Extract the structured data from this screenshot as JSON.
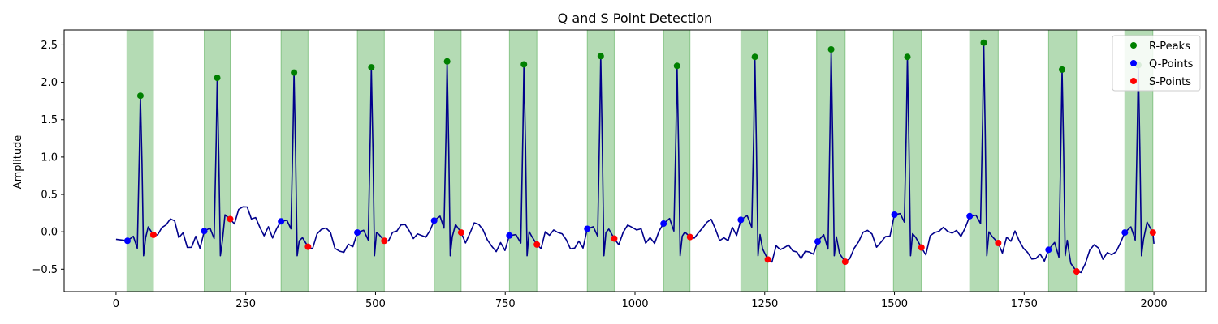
{
  "chart_data": {
    "type": "line",
    "title": "Q and S Point Detection",
    "xlabel": "",
    "ylabel": "Amplitude",
    "xlim": [
      -100,
      2100
    ],
    "ylim": [
      -0.8,
      2.7
    ],
    "xticks": [
      0,
      250,
      500,
      750,
      1000,
      1250,
      1500,
      1750,
      2000
    ],
    "yticks": [
      -0.5,
      0.0,
      0.5,
      1.0,
      1.5,
      2.0,
      2.5
    ],
    "xtick_labels": [
      "0",
      "250",
      "500",
      "750",
      "1000",
      "1250",
      "1500",
      "1750",
      "2000"
    ],
    "ytick_labels": [
      "−0.5",
      "0.0",
      "0.5",
      "1.0",
      "1.5",
      "2.0",
      "2.5"
    ],
    "grid": false,
    "legend_position": "top-right",
    "colors": {
      "signal": "#00008b",
      "r_peaks": "#008000",
      "q_points": "#0000ff",
      "s_points": "#ff0000",
      "qrs_span": "#2e9a2e"
    },
    "qrs_intervals": [
      [
        21,
        72
      ],
      [
        170,
        220
      ],
      [
        318,
        370
      ],
      [
        465,
        517
      ],
      [
        613,
        665
      ],
      [
        758,
        811
      ],
      [
        908,
        960
      ],
      [
        1055,
        1106
      ],
      [
        1204,
        1256
      ],
      [
        1350,
        1405
      ],
      [
        1498,
        1552
      ],
      [
        1645,
        1700
      ],
      [
        1797,
        1851
      ],
      [
        1944,
        1998
      ]
    ],
    "r_peaks": {
      "x": [
        47,
        195,
        343,
        492,
        638,
        786,
        934,
        1081,
        1231,
        1378,
        1525,
        1672,
        1823,
        1970
      ],
      "y": [
        1.82,
        2.06,
        2.13,
        2.2,
        2.28,
        2.24,
        2.35,
        2.22,
        2.34,
        2.44,
        2.34,
        2.53,
        2.17,
        2.23
      ]
    },
    "q_points": {
      "x": [
        22,
        170,
        318,
        465,
        613,
        758,
        908,
        1055,
        1204,
        1352,
        1500,
        1645,
        1797,
        1944
      ],
      "y": [
        -0.12,
        0.01,
        0.14,
        -0.01,
        0.15,
        -0.05,
        0.04,
        0.11,
        0.16,
        -0.13,
        0.23,
        0.21,
        -0.24,
        -0.01
      ]
    },
    "s_points": {
      "x": [
        72,
        220,
        370,
        517,
        665,
        811,
        960,
        1106,
        1256,
        1405,
        1552,
        1700,
        1851,
        1998
      ],
      "y": [
        -0.04,
        0.17,
        -0.2,
        -0.12,
        -0.01,
        -0.17,
        -0.09,
        -0.07,
        -0.37,
        -0.4,
        -0.21,
        -0.15,
        -0.53,
        -0.01
      ]
    },
    "series": [
      {
        "name": "R-Peaks",
        "marker": "dot",
        "color": "#008000"
      },
      {
        "name": "Q-Points",
        "marker": "dot",
        "color": "#0000ff"
      },
      {
        "name": "S-Points",
        "marker": "dot",
        "color": "#ff0000"
      }
    ]
  }
}
